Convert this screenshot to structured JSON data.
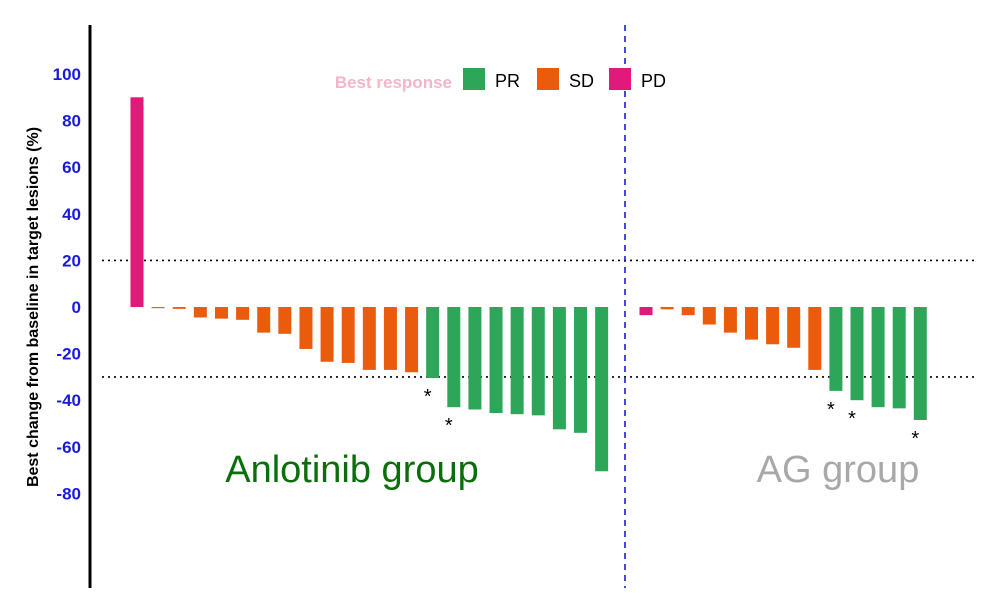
{
  "colors": {
    "PR": "#2ea65a",
    "SD": "#ea5b0c",
    "PD": "#e0197a",
    "ytick": "#1a1adb",
    "ylabel": "#a52a2a",
    "legend_title": "#f4b6c6",
    "anlotinib_label": "#0a6e0a",
    "ag_label": "#a8a8a8",
    "divider": "#1a1adb"
  },
  "chart_data": {
    "type": "bar",
    "title": "",
    "xlabel": "",
    "ylabel": "Best change from baseline in target lesions (%)",
    "ylim": [
      -120,
      120
    ],
    "yticks": [
      100,
      80,
      60,
      40,
      20,
      0,
      -20,
      -40,
      -60,
      -80
    ],
    "reference_lines": [
      20,
      -30
    ],
    "legend": {
      "title": "Best response",
      "placement": "top-center",
      "entries": [
        "PR",
        "SD",
        "PD"
      ]
    },
    "groups": [
      {
        "label": "Anlotinib group",
        "values": [
          90,
          -0.5,
          -0.8,
          -4.5,
          -5,
          -5.5,
          -11,
          -11.5,
          -18,
          -23.5,
          -24,
          -27,
          -27,
          -28,
          -30.5,
          -43,
          -44,
          -45.5,
          -46,
          -46.5,
          -52.5,
          -54,
          -70.5
        ],
        "responses": [
          "PD",
          "SD",
          "SD",
          "SD",
          "SD",
          "SD",
          "SD",
          "SD",
          "SD",
          "SD",
          "SD",
          "SD",
          "SD",
          "SD",
          "PR",
          "PR",
          "PR",
          "PR",
          "PR",
          "PR",
          "PR",
          "PR",
          "PR"
        ],
        "asterisks": [
          14,
          15
        ]
      },
      {
        "label": "AG group",
        "values": [
          -3.5,
          -1,
          -3.5,
          -7.5,
          -11,
          -14,
          -16,
          -17.5,
          -27,
          -36,
          -40,
          -43,
          -43.5,
          -48.5
        ],
        "responses": [
          "PD",
          "SD",
          "SD",
          "SD",
          "SD",
          "SD",
          "SD",
          "SD",
          "SD",
          "PR",
          "PR",
          "PR",
          "PR",
          "PR"
        ],
        "asterisks": [
          9,
          10,
          13
        ]
      }
    ]
  }
}
